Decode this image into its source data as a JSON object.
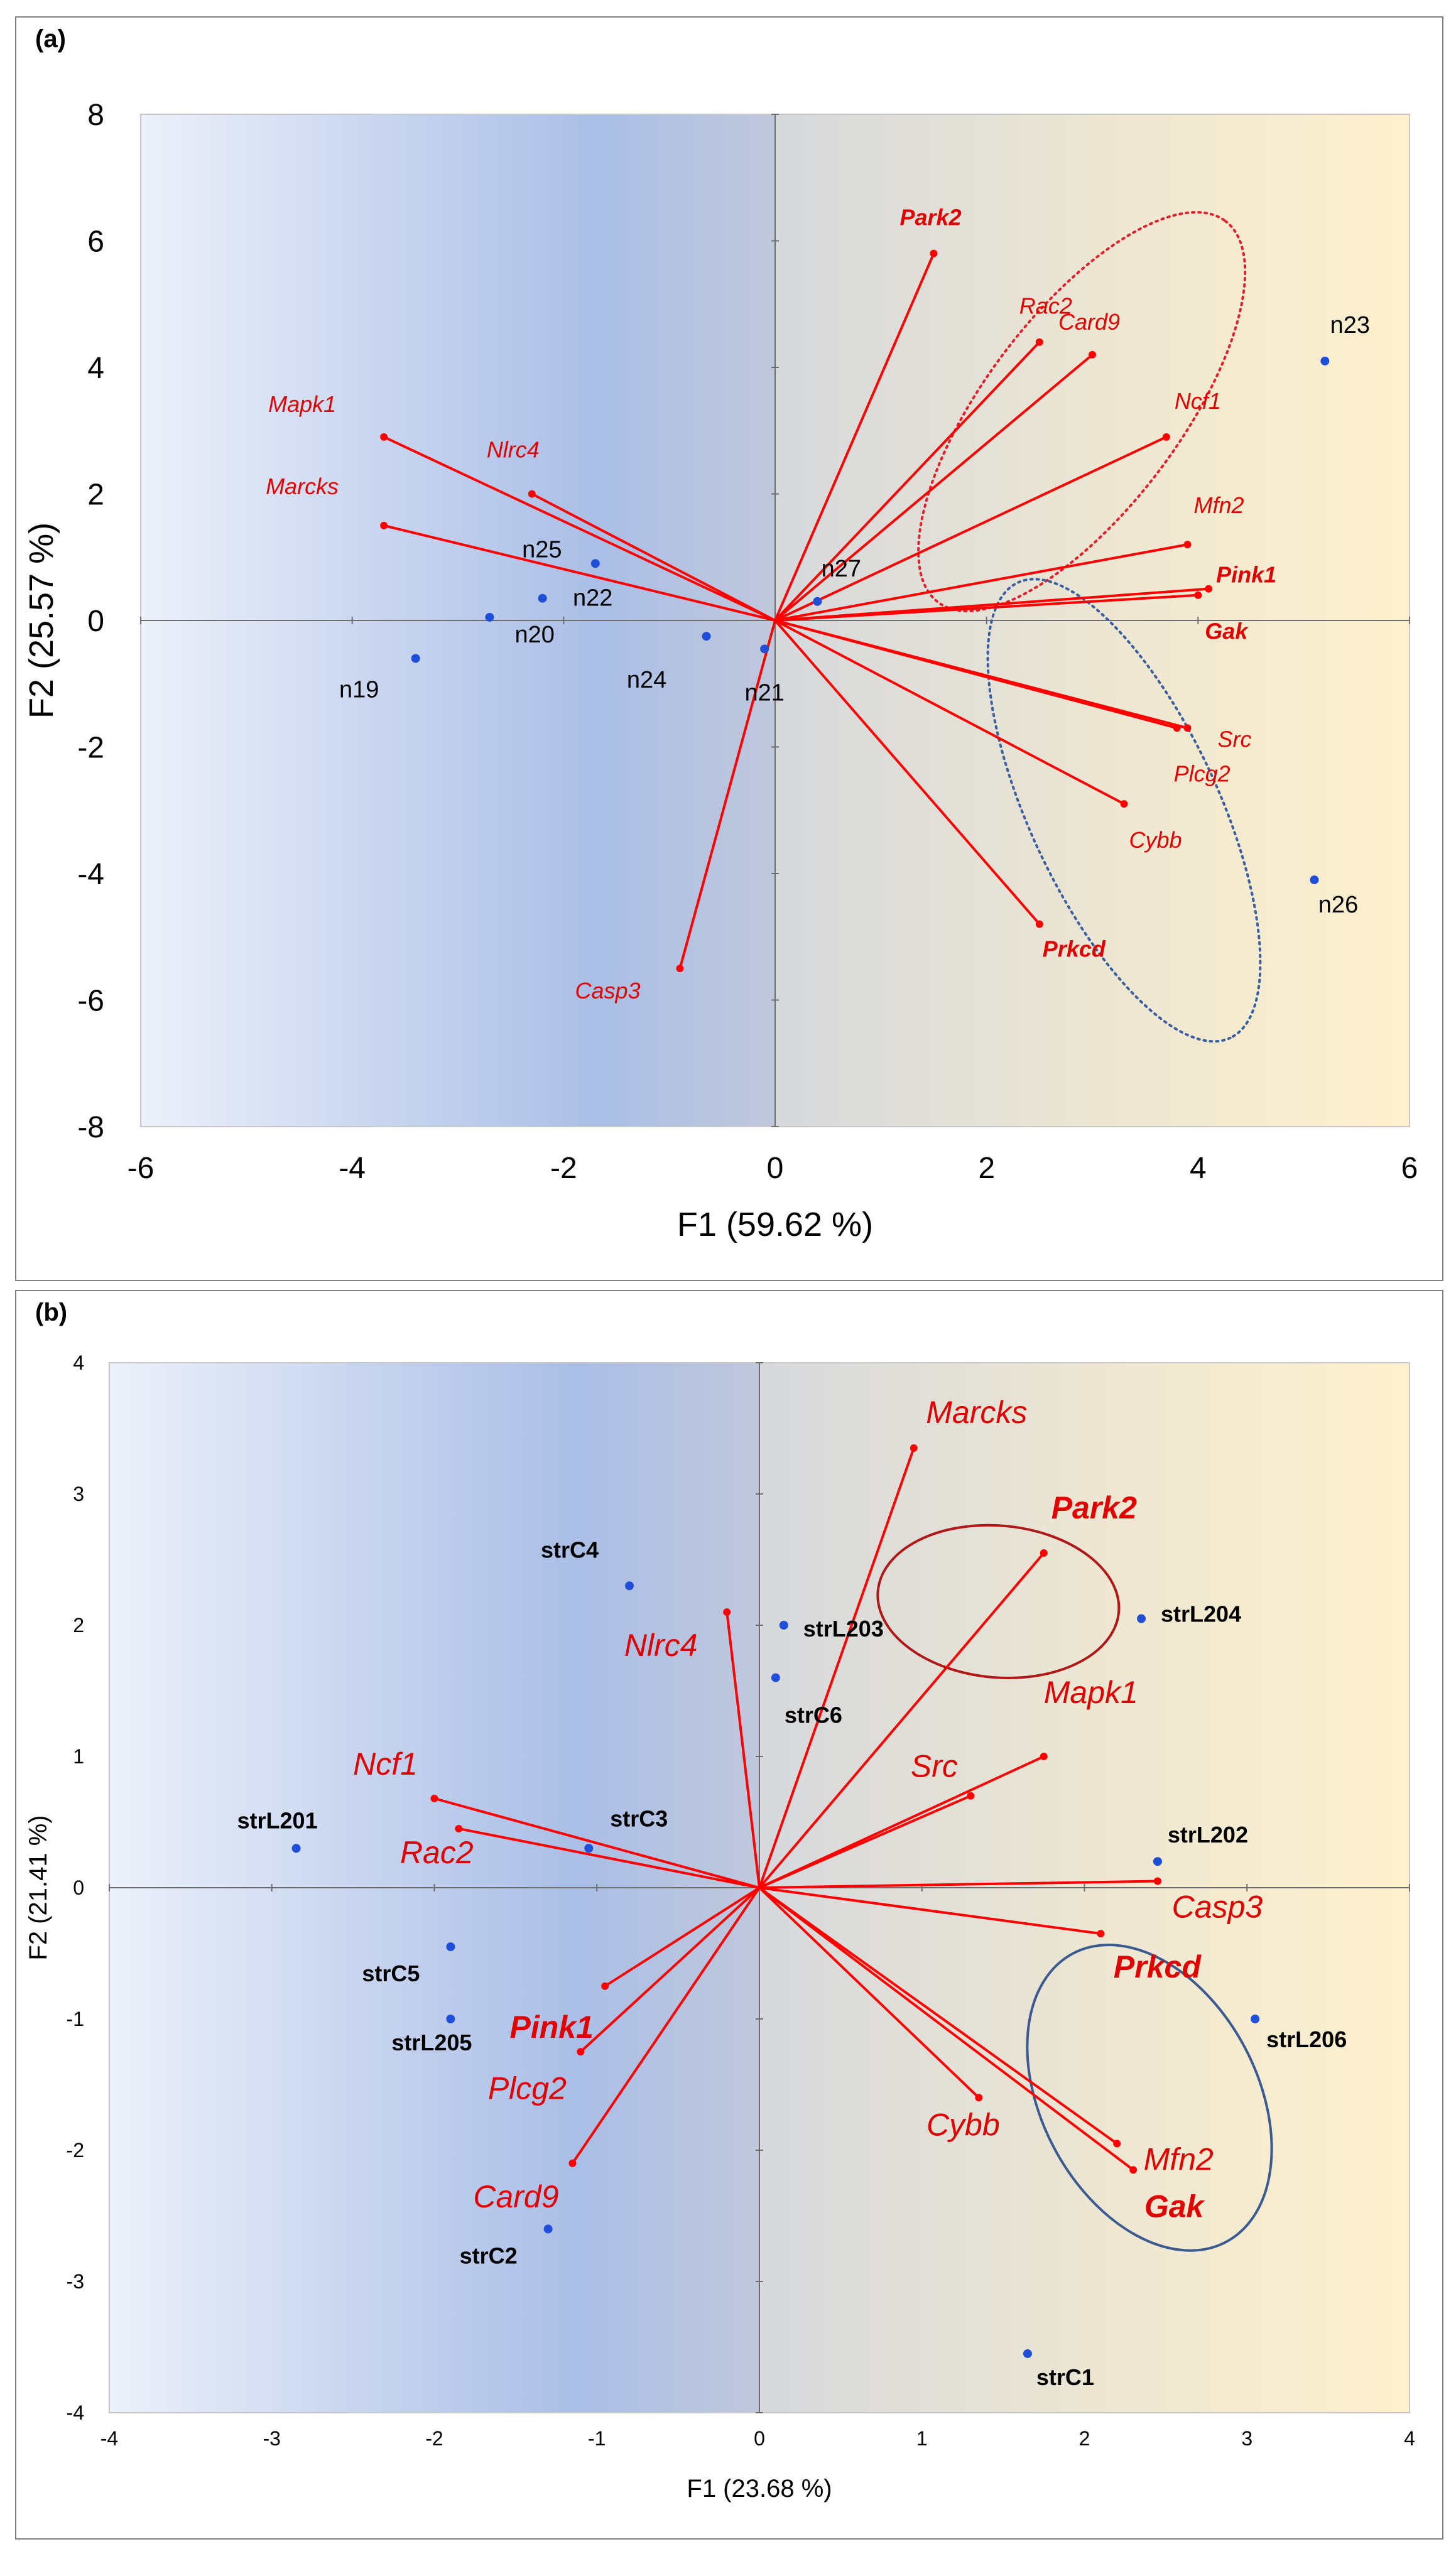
{
  "chart_data": [
    {
      "panel": "(a)",
      "type": "scatter",
      "subtype": "pca-biplot",
      "xlabel": "F1 (59.62 %)",
      "ylabel": "F2 (25.57 %)",
      "xlim": [
        -6,
        6
      ],
      "ylim": [
        -8,
        8
      ],
      "xticks": [
        -6,
        -4,
        -2,
        0,
        2,
        4,
        6
      ],
      "yticks": [
        -8,
        -6,
        -4,
        -2,
        0,
        2,
        4,
        6,
        8
      ],
      "grid": false,
      "colors": {
        "vector": "#ff0000",
        "label": "#e00000",
        "n-blue": "#1f4fd8",
        "n-green": "#22a84a",
        "n-red": "#c00000",
        "obs-point": "#1f4fd8"
      },
      "variables": [
        {
          "name": "Park2",
          "x": 1.5,
          "y": 5.8,
          "bold": true
        },
        {
          "name": "Rac2",
          "x": 2.5,
          "y": 4.4,
          "bold": false
        },
        {
          "name": "Card9",
          "x": 3.0,
          "y": 4.2,
          "bold": false
        },
        {
          "name": "Ncf1",
          "x": 3.7,
          "y": 2.9,
          "bold": false
        },
        {
          "name": "Mfn2",
          "x": 3.9,
          "y": 1.2,
          "bold": false
        },
        {
          "name": "Pink1",
          "x": 4.1,
          "y": 0.5,
          "bold": true
        },
        {
          "name": "Gak",
          "x": 4.0,
          "y": 0.4,
          "bold": true
        },
        {
          "name": "Src",
          "x": 3.9,
          "y": -1.7,
          "bold": false
        },
        {
          "name": "Plcg2",
          "x": 3.8,
          "y": -1.7,
          "bold": false
        },
        {
          "name": "Cybb",
          "x": 3.3,
          "y": -2.9,
          "bold": false
        },
        {
          "name": "Prkcd",
          "x": 2.5,
          "y": -4.8,
          "bold": true
        },
        {
          "name": "Casp3",
          "x": -0.9,
          "y": -5.5,
          "bold": false
        },
        {
          "name": "Mapk1",
          "x": -3.7,
          "y": 2.9,
          "bold": false
        },
        {
          "name": "Nlrc4",
          "x": -2.3,
          "y": 2.0,
          "bold": false
        },
        {
          "name": "Marcks",
          "x": -3.7,
          "y": 1.5,
          "bold": false
        }
      ],
      "observations": [
        {
          "name": "n23",
          "x": 5.2,
          "y": 4.1,
          "label_color": "#c00000"
        },
        {
          "name": "n25",
          "x": -1.7,
          "y": 0.9,
          "label_color": "#1f4fd8"
        },
        {
          "name": "n27",
          "x": 0.4,
          "y": 0.3,
          "label_color": "#1f4fd8"
        },
        {
          "name": "n22",
          "x": -2.2,
          "y": 0.35,
          "label_color": "#c00000"
        },
        {
          "name": "n20",
          "x": -2.7,
          "y": 0.05,
          "label_color": "#22a84a"
        },
        {
          "name": "n19",
          "x": -3.4,
          "y": -0.6,
          "label_color": "#22a84a"
        },
        {
          "name": "n24",
          "x": -0.65,
          "y": -0.25,
          "label_color": "#c00000"
        },
        {
          "name": "n21",
          "x": -0.1,
          "y": -0.45,
          "label_color": "#22a84a"
        },
        {
          "name": "n26",
          "x": 5.1,
          "y": -4.1,
          "label_color": "#1f4fd8"
        }
      ],
      "ellipses": [
        {
          "group": "upper",
          "style": "dotted",
          "color": "#e0202a",
          "cx": 2.9,
          "cy": 3.3,
          "rx": 3.8,
          "ry": 1.55,
          "rotation_deg": 53
        },
        {
          "group": "lower",
          "style": "dotted",
          "color": "#3a5fa0",
          "cx": 3.3,
          "cy": -3.0,
          "rx": 4.0,
          "ry": 1.5,
          "rotation_deg": -65
        }
      ]
    },
    {
      "panel": "(b)",
      "type": "scatter",
      "subtype": "pca-biplot",
      "xlabel": "F1 (23.68 %)",
      "ylabel": "F2 (21.41 %)",
      "xlim": [
        -4,
        4
      ],
      "ylim": [
        -4,
        4
      ],
      "xticks": [
        -4,
        -3,
        -2,
        -1,
        0,
        1,
        2,
        3,
        4
      ],
      "yticks": [
        -4,
        -3,
        -2,
        -1,
        0,
        1,
        2,
        3,
        4
      ],
      "grid": false,
      "colors": {
        "vector": "#ff0000",
        "label": "#e00000",
        "strL": "#1f4fd8",
        "strC": "#22a84a",
        "obs-point": "#1f4fd8"
      },
      "variables": [
        {
          "name": "Marcks",
          "x": 0.95,
          "y": 3.35,
          "bold": false
        },
        {
          "name": "Park2",
          "x": 1.75,
          "y": 2.55,
          "bold": true
        },
        {
          "name": "Mapk1",
          "x": 1.75,
          "y": 1.0,
          "bold": false
        },
        {
          "name": "Src",
          "x": 1.3,
          "y": 0.7,
          "bold": false
        },
        {
          "name": "Nlrc4",
          "x": -0.2,
          "y": 2.1,
          "bold": false
        },
        {
          "name": "Ncf1",
          "x": -2.0,
          "y": 0.68,
          "bold": false
        },
        {
          "name": "Rac2",
          "x": -1.85,
          "y": 0.45,
          "bold": false
        },
        {
          "name": "Pink1",
          "x": -0.95,
          "y": -0.75,
          "bold": true
        },
        {
          "name": "Plcg2",
          "x": -1.1,
          "y": -1.25,
          "bold": false
        },
        {
          "name": "Card9",
          "x": -1.15,
          "y": -2.1,
          "bold": false
        },
        {
          "name": "Casp3",
          "x": 2.45,
          "y": 0.05,
          "bold": false
        },
        {
          "name": "Prkcd",
          "x": 2.1,
          "y": -0.35,
          "bold": true
        },
        {
          "name": "Cybb",
          "x": 1.35,
          "y": -1.6,
          "bold": false
        },
        {
          "name": "Mfn2",
          "x": 2.2,
          "y": -1.95,
          "bold": false
        },
        {
          "name": "Gak",
          "x": 2.3,
          "y": -2.15,
          "bold": true
        }
      ],
      "observations": [
        {
          "name": "strC4",
          "x": -0.8,
          "y": 2.3,
          "label_color": "#22a84a"
        },
        {
          "name": "strL203",
          "x": 0.15,
          "y": 2.0,
          "label_color": "#1f4fd8"
        },
        {
          "name": "strC6",
          "x": 0.1,
          "y": 1.6,
          "label_color": "#22a84a"
        },
        {
          "name": "strL204",
          "x": 2.35,
          "y": 2.05,
          "label_color": "#1f4fd8"
        },
        {
          "name": "strC3",
          "x": -1.05,
          "y": 0.3,
          "label_color": "#22a84a"
        },
        {
          "name": "strL201",
          "x": -2.85,
          "y": 0.3,
          "label_color": "#1f4fd8"
        },
        {
          "name": "strL202",
          "x": 2.45,
          "y": 0.2,
          "label_color": "#1f4fd8"
        },
        {
          "name": "strC5",
          "x": -1.9,
          "y": -0.45,
          "label_color": "#22a84a"
        },
        {
          "name": "strL205",
          "x": -1.9,
          "y": -1.0,
          "label_color": "#1f4fd8"
        },
        {
          "name": "strL206",
          "x": 3.05,
          "y": -1.0,
          "label_color": "#1f4fd8"
        },
        {
          "name": "strC2",
          "x": -1.3,
          "y": -2.6,
          "label_color": "#22a84a"
        },
        {
          "name": "strC1",
          "x": 1.65,
          "y": -3.55,
          "label_color": "#22a84a"
        }
      ],
      "ellipses": [
        {
          "group": "upper",
          "style": "solid",
          "color": "#b01818",
          "cx": 1.47,
          "cy": 2.18,
          "rx": 1.48,
          "ry": 0.93,
          "rotation_deg": -5
        },
        {
          "group": "lower",
          "style": "solid",
          "color": "#3a5a90",
          "cx": 2.4,
          "cy": -1.6,
          "rx": 2.0,
          "ry": 1.32,
          "rotation_deg": -62
        }
      ]
    }
  ]
}
